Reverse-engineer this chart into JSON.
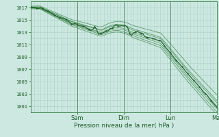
{
  "bg_color": "#cce8e0",
  "grid_color": "#aacfc8",
  "ylabel_ticks": [
    1001,
    1003,
    1005,
    1007,
    1009,
    1011,
    1013,
    1015,
    1017
  ],
  "ymin": 1000.0,
  "ymax": 1018.0,
  "xlabel": "Pression niveau de la mer( hPa )",
  "day_labels": [
    "Sam",
    "Dim",
    "Lun",
    "Mar"
  ],
  "day_positions": [
    0.25,
    0.5,
    0.75,
    1.0
  ],
  "dark_green": "#1e5c28",
  "mid_green": "#2e7a38",
  "light_green": "#4a9a58"
}
